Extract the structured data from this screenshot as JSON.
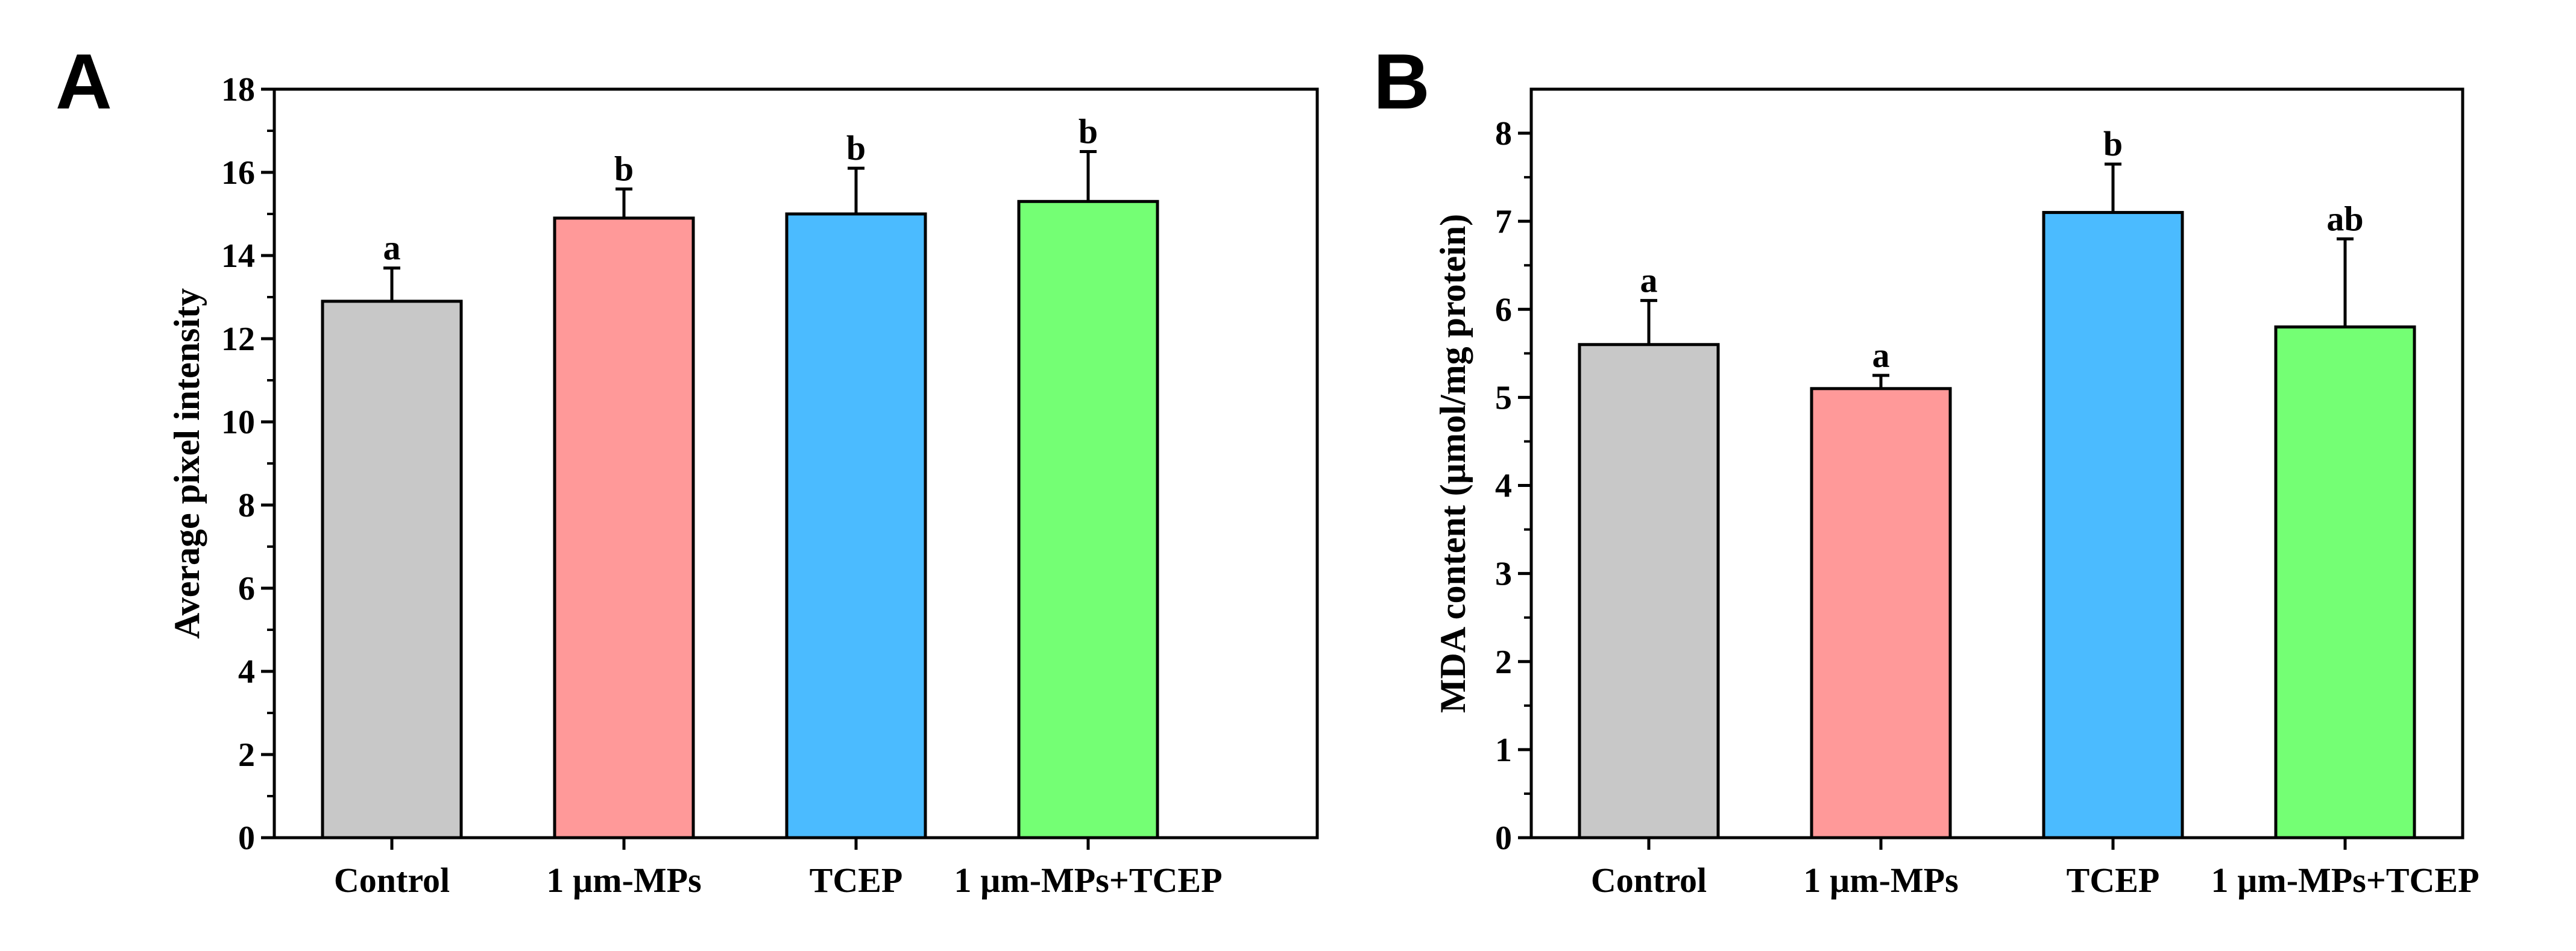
{
  "chart_data": [
    {
      "panel": "A",
      "type": "bar",
      "categories": [
        "Control",
        "1 µm-MPs",
        "TCEP",
        "1 µm-MPs+TCEP"
      ],
      "values": [
        12.9,
        14.9,
        15.0,
        15.3
      ],
      "errors": [
        0.8,
        0.7,
        1.1,
        1.2
      ],
      "significance": [
        "a",
        "b",
        "b",
        "b"
      ],
      "colors": [
        "#c8c8c8",
        "#ff9999",
        "#4bbbff",
        "#74ff74"
      ],
      "title": "",
      "xlabel": "",
      "ylabel": "Average pixel intensity",
      "ylim": [
        0,
        18
      ],
      "yticks": [
        0,
        2,
        4,
        6,
        8,
        10,
        12,
        14,
        16,
        18
      ],
      "grid": false
    },
    {
      "panel": "B",
      "type": "bar",
      "categories": [
        "Control",
        "1 µm-MPs",
        "TCEP",
        "1 µm-MPs+TCEP"
      ],
      "values": [
        5.6,
        5.1,
        7.1,
        5.8
      ],
      "errors": [
        0.5,
        0.15,
        0.55,
        1.0
      ],
      "significance": [
        "a",
        "a",
        "b",
        "ab"
      ],
      "colors": [
        "#c8c8c8",
        "#ff9999",
        "#4bbbff",
        "#74ff74"
      ],
      "title": "",
      "xlabel": "",
      "ylabel": "MDA content (µmol/mg protein)",
      "ylim": [
        0,
        8.5
      ],
      "yticks": [
        0,
        1,
        2,
        3,
        4,
        5,
        6,
        7,
        8
      ],
      "grid": false
    }
  ]
}
